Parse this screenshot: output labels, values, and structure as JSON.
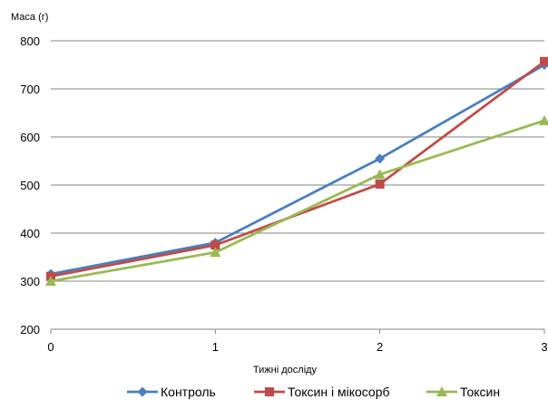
{
  "chart_data": {
    "type": "line",
    "ylabel": "Маса (г)",
    "xlabel": "Тижні досліду",
    "x": [
      0,
      1,
      2,
      3
    ],
    "xlim": [
      0,
      3
    ],
    "ylim": [
      200,
      800
    ],
    "yticks": [
      200,
      300,
      400,
      500,
      600,
      700,
      800
    ],
    "grid": true,
    "legend_position": "bottom",
    "series": [
      {
        "name": "Контроль",
        "color": "#4a7ebb",
        "marker": "diamond",
        "values": [
          315,
          380,
          555,
          750
        ]
      },
      {
        "name": "Токсин і мікосорб",
        "color": "#be4b48",
        "marker": "square",
        "values": [
          310,
          375,
          502,
          757
        ]
      },
      {
        "name": "Токсин",
        "color": "#98b954",
        "marker": "triangle",
        "values": [
          300,
          360,
          522,
          634
        ]
      }
    ]
  }
}
